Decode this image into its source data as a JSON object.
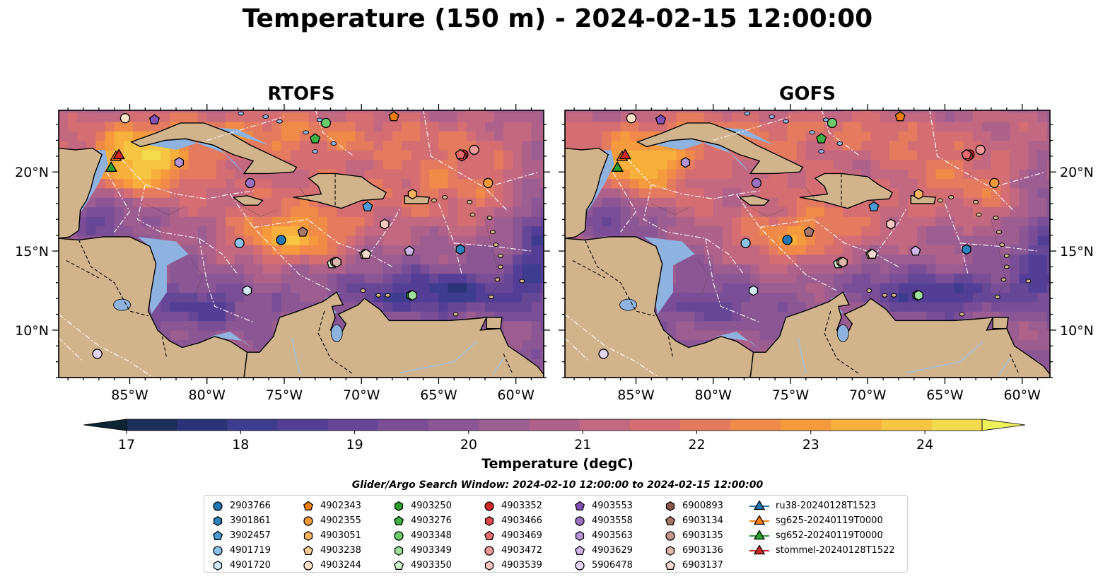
{
  "title": "Temperature (150 m) - 2024-02-15 12:00:00",
  "panels": [
    {
      "title": "RTOFS"
    },
    {
      "title": "GOFS"
    }
  ],
  "lon_ticks": [
    "85°W",
    "80°W",
    "75°W",
    "70°W",
    "65°W",
    "60°W"
  ],
  "lat_ticks": [
    "20°N",
    "15°N",
    "10°N"
  ],
  "colorbar": {
    "label": "Temperature (degC)",
    "ticks": [
      "17",
      "18",
      "19",
      "20",
      "21",
      "22",
      "23",
      "24"
    ],
    "colors": [
      "#0d2636",
      "#1c2e5a",
      "#2a3278",
      "#3d3c8f",
      "#523f95",
      "#664796",
      "#7a4e96",
      "#8b5694",
      "#9c5d90",
      "#ae628a",
      "#c26881",
      "#d46e72",
      "#e47a5e",
      "#f08a48",
      "#f59b3e",
      "#f7b03c",
      "#f6c542",
      "#f2db4c",
      "#eef25a"
    ]
  },
  "search_window": "Glider/Argo Search Window: 2024-02-10 12:00:00 to 2024-02-15 12:00:00",
  "legend": [
    [
      {
        "label": "2903766",
        "marker": "circle",
        "color": "#1f77b4"
      },
      {
        "label": "3901861",
        "marker": "hexagon",
        "color": "#2d83c0"
      },
      {
        "label": "3902457",
        "marker": "pentagon",
        "color": "#4a9ad4"
      },
      {
        "label": "4901719",
        "marker": "circle",
        "color": "#8cc3ea"
      },
      {
        "label": "4901720",
        "marker": "hexagon",
        "color": "#d3e9f8"
      }
    ],
    [
      {
        "label": "4902343",
        "marker": "pentagon",
        "color": "#f07d0c"
      },
      {
        "label": "4902355",
        "marker": "circle",
        "color": "#f59a3a"
      },
      {
        "label": "4903051",
        "marker": "hexagon",
        "color": "#fbb35f"
      },
      {
        "label": "4903238",
        "marker": "pentagon",
        "color": "#fdcc96"
      },
      {
        "label": "4903244",
        "marker": "circle",
        "color": "#fee3c8"
      }
    ],
    [
      {
        "label": "4903250",
        "marker": "hexagon",
        "color": "#2ca02c"
      },
      {
        "label": "4903276",
        "marker": "pentagon",
        "color": "#3fb03f"
      },
      {
        "label": "4903348",
        "marker": "circle",
        "color": "#6ccc6c"
      },
      {
        "label": "4903349",
        "marker": "hexagon",
        "color": "#9ee09e"
      },
      {
        "label": "4903350",
        "marker": "pentagon",
        "color": "#cdf3c8"
      }
    ],
    [
      {
        "label": "4903352",
        "marker": "circle",
        "color": "#d62728"
      },
      {
        "label": "4903466",
        "marker": "hexagon",
        "color": "#e0484a"
      },
      {
        "label": "4903469",
        "marker": "pentagon",
        "color": "#e96b6d"
      },
      {
        "label": "4903472",
        "marker": "circle",
        "color": "#f29a99"
      },
      {
        "label": "4903539",
        "marker": "hexagon",
        "color": "#f9c6c4"
      }
    ],
    [
      {
        "label": "4903553",
        "marker": "pentagon",
        "color": "#8451b5"
      },
      {
        "label": "4903558",
        "marker": "circle",
        "color": "#9c71c4"
      },
      {
        "label": "4903563",
        "marker": "hexagon",
        "color": "#b595d8"
      },
      {
        "label": "4903629",
        "marker": "pentagon",
        "color": "#cfb6ea"
      },
      {
        "label": "5906478",
        "marker": "circle",
        "color": "#e7d5f6"
      }
    ],
    [
      {
        "label": "6900893",
        "marker": "hexagon",
        "color": "#8c564b"
      },
      {
        "label": "6903134",
        "marker": "pentagon",
        "color": "#a8766a"
      },
      {
        "label": "6903135",
        "marker": "circle",
        "color": "#c4968a"
      },
      {
        "label": "6903136",
        "marker": "hexagon",
        "color": "#ddb7ac"
      },
      {
        "label": "6903137",
        "marker": "pentagon",
        "color": "#f4d7cf"
      }
    ],
    [
      {
        "label": "ru38-20240128T1523",
        "marker": "triangle-line",
        "color": "#1f77b4"
      },
      {
        "label": "sg625-20240119T0000",
        "marker": "triangle-line",
        "color": "#ff7f0e"
      },
      {
        "label": "sg652-20240119T0000",
        "marker": "triangle-line",
        "color": "#2ca02c"
      },
      {
        "label": "stommel-20240128T1522",
        "marker": "triangle-line",
        "color": "#d62728"
      }
    ]
  ],
  "floats": [
    {
      "id": "2903766",
      "lon": -75.2,
      "lat": 15.7,
      "marker": "circle",
      "color": "#1f77b4"
    },
    {
      "id": "3901861",
      "lon": -63.6,
      "lat": 15.1,
      "marker": "hexagon",
      "color": "#2d83c0"
    },
    {
      "id": "3902457",
      "lon": -69.6,
      "lat": 17.8,
      "marker": "pentagon",
      "color": "#4a9ad4"
    },
    {
      "id": "4901719",
      "lon": -77.9,
      "lat": 15.5,
      "marker": "circle",
      "color": "#8cc3ea"
    },
    {
      "id": "4901720",
      "lon": -77.4,
      "lat": 12.5,
      "marker": "hexagon",
      "color": "#d3e9f8"
    },
    {
      "id": "4902343",
      "lon": -67.9,
      "lat": 23.5,
      "marker": "pentagon",
      "color": "#f07d0c"
    },
    {
      "id": "4902355",
      "lon": -61.8,
      "lat": 19.3,
      "marker": "circle",
      "color": "#f59a3a"
    },
    {
      "id": "4903051",
      "lon": -66.7,
      "lat": 18.6,
      "marker": "hexagon",
      "color": "#fbb35f"
    },
    {
      "id": "4903238",
      "lon": -69.8,
      "lat": 14.8,
      "marker": "pentagon",
      "color": "#fdcc96"
    },
    {
      "id": "4903244",
      "lon": -85.3,
      "lat": 23.4,
      "marker": "circle",
      "color": "#fee3c8"
    },
    {
      "id": "4903250",
      "lon": -66.8,
      "lat": 12.2,
      "marker": "hexagon",
      "color": "#2ca02c"
    },
    {
      "id": "4903276",
      "lon": -73.0,
      "lat": 22.1,
      "marker": "pentagon",
      "color": "#3fb03f"
    },
    {
      "id": "4903348",
      "lon": -72.3,
      "lat": 23.1,
      "marker": "circle",
      "color": "#6ccc6c"
    },
    {
      "id": "4903349",
      "lon": -66.7,
      "lat": 12.2,
      "marker": "hexagon",
      "color": "#9ee09e"
    },
    {
      "id": "4903350",
      "lon": -71.9,
      "lat": 14.2,
      "marker": "pentagon",
      "color": "#cdf3c8"
    },
    {
      "id": "4903352",
      "lon": -63.4,
      "lat": 21.1,
      "marker": "circle",
      "color": "#d62728"
    },
    {
      "id": "4903466",
      "lon": -63.5,
      "lat": 21.0,
      "marker": "hexagon",
      "color": "#e0484a"
    },
    {
      "id": "4903469",
      "lon": -63.6,
      "lat": 21.1,
      "marker": "pentagon",
      "color": "#e96b6d"
    },
    {
      "id": "4903472",
      "lon": -62.7,
      "lat": 21.4,
      "marker": "circle",
      "color": "#f29a99"
    },
    {
      "id": "4903539",
      "lon": -68.5,
      "lat": 16.7,
      "marker": "hexagon",
      "color": "#f9c6c4"
    },
    {
      "id": "4903553",
      "lon": -83.4,
      "lat": 23.3,
      "marker": "pentagon",
      "color": "#8451b5"
    },
    {
      "id": "4903558",
      "lon": -77.2,
      "lat": 19.3,
      "marker": "circle",
      "color": "#9c71c4"
    },
    {
      "id": "4903563",
      "lon": -81.8,
      "lat": 20.6,
      "marker": "hexagon",
      "color": "#b595d8"
    },
    {
      "id": "4903629",
      "lon": -66.9,
      "lat": 15.0,
      "marker": "pentagon",
      "color": "#cfb6ea"
    },
    {
      "id": "5906478",
      "lon": -87.1,
      "lat": 8.5,
      "marker": "circle",
      "color": "#e7d5f6"
    },
    {
      "id": "6900893",
      "lon": -71.6,
      "lat": 14.3,
      "marker": "hexagon",
      "color": "#8c564b"
    },
    {
      "id": "6903134",
      "lon": -73.8,
      "lat": 16.2,
      "marker": "pentagon",
      "color": "#a8766a"
    },
    {
      "id": "6903135",
      "lon": -71.7,
      "lat": 14.3,
      "marker": "circle",
      "color": "#c4968a"
    },
    {
      "id": "6903136",
      "lon": -71.6,
      "lat": 14.3,
      "marker": "hexagon",
      "color": "#ddb7ac"
    },
    {
      "id": "6903137",
      "lon": -69.7,
      "lat": 14.8,
      "marker": "pentagon",
      "color": "#f4d7cf"
    }
  ],
  "gliders": [
    {
      "id": "ru38-20240128T1523",
      "lon": -86.2,
      "lat": 20.3,
      "color": "#1f77b4"
    },
    {
      "id": "sg625-20240119T0000",
      "lon": -85.9,
      "lat": 21.0,
      "color": "#ff7f0e"
    },
    {
      "id": "sg652-20240119T0000",
      "lon": -86.2,
      "lat": 20.3,
      "color": "#2ca02c"
    },
    {
      "id": "stommel-20240128T1522",
      "lon": -85.7,
      "lat": 21.1,
      "color": "#d62728"
    }
  ]
}
